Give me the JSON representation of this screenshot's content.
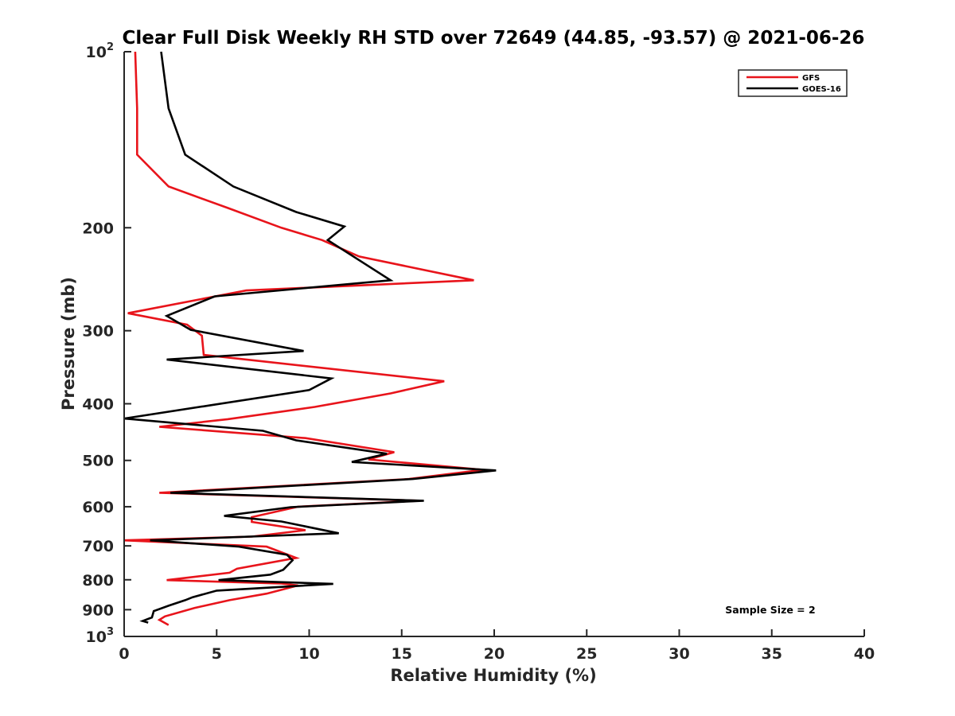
{
  "chart_data": {
    "type": "line",
    "title": "Clear Full Disk Weekly RH STD over 72649 (44.85, -93.57) @ 2021-06-26",
    "xlabel": "Relative Humidity (%)",
    "ylabel": "Pressure (mb)",
    "xlim": [
      0,
      40
    ],
    "ylim": [
      100,
      1000
    ],
    "y_scale": "log",
    "y_reversed": true,
    "grid": false,
    "x_ticks": [
      "0",
      "5",
      "10",
      "15",
      "20",
      "25",
      "30",
      "35",
      "40"
    ],
    "x_tick_values": [
      0,
      5,
      10,
      15,
      20,
      25,
      30,
      35,
      40
    ],
    "y_ticks": [
      {
        "value": 100,
        "base": "10",
        "exp": "2"
      },
      {
        "value": 200,
        "label": "200"
      },
      {
        "value": 300,
        "label": "300"
      },
      {
        "value": 400,
        "label": "400"
      },
      {
        "value": 500,
        "label": "500"
      },
      {
        "value": 600,
        "label": "600"
      },
      {
        "value": 700,
        "label": "700"
      },
      {
        "value": 800,
        "label": "800"
      },
      {
        "value": 900,
        "label": "900"
      },
      {
        "value": 1000,
        "base": "10",
        "exp": "3"
      }
    ],
    "legend": {
      "position": "top-right"
    },
    "annotation": "Sample Size = 2",
    "series": [
      {
        "name": "GFS",
        "color": "#e8141b",
        "points": [
          [
            0.6,
            100
          ],
          [
            0.7,
            125
          ],
          [
            0.7,
            150
          ],
          [
            2.4,
            170
          ],
          [
            5.6,
            185
          ],
          [
            8.5,
            200
          ],
          [
            10.7,
            210
          ],
          [
            12.7,
            224
          ],
          [
            18.9,
            246
          ],
          [
            6.6,
            256
          ],
          [
            0.2,
            280
          ],
          [
            3.4,
            293
          ],
          [
            4.2,
            306
          ],
          [
            4.3,
            330
          ],
          [
            17.3,
            366
          ],
          [
            14.4,
            384
          ],
          [
            10.3,
            405
          ],
          [
            5.6,
            425
          ],
          [
            1.9,
            438
          ],
          [
            9.8,
            458
          ],
          [
            14.6,
            484
          ],
          [
            13.2,
            498
          ],
          [
            19.4,
            519
          ],
          [
            15.4,
            538
          ],
          [
            1.9,
            568
          ],
          [
            16.0,
            586
          ],
          [
            9.4,
            600
          ],
          [
            6.9,
            625
          ],
          [
            6.9,
            637
          ],
          [
            9.8,
            658
          ],
          [
            6.9,
            675
          ],
          [
            0.0,
            685
          ],
          [
            7.7,
            702
          ],
          [
            9.3,
            734
          ],
          [
            6.1,
            766
          ],
          [
            5.7,
            778
          ],
          [
            2.3,
            801
          ],
          [
            8.5,
            812
          ],
          [
            9.4,
            818
          ],
          [
            7.7,
            845
          ],
          [
            5.7,
            867
          ],
          [
            3.8,
            894
          ],
          [
            2.2,
            924
          ],
          [
            1.9,
            937
          ],
          [
            2.4,
            956
          ]
        ]
      },
      {
        "name": "GOES-16",
        "color": "#000000",
        "points": [
          [
            2.0,
            100
          ],
          [
            2.4,
            125
          ],
          [
            3.3,
            150
          ],
          [
            5.9,
            170
          ],
          [
            9.3,
            188
          ],
          [
            11.9,
            199
          ],
          [
            11.0,
            210
          ],
          [
            14.4,
            246
          ],
          [
            4.9,
            262
          ],
          [
            2.3,
            283
          ],
          [
            3.6,
            299
          ],
          [
            9.7,
            325
          ],
          [
            2.3,
            336
          ],
          [
            11.2,
            362
          ],
          [
            10.0,
            379
          ],
          [
            0.0,
            424
          ],
          [
            7.5,
            445
          ],
          [
            9.3,
            462
          ],
          [
            14.2,
            487
          ],
          [
            12.3,
            503
          ],
          [
            20.1,
            520
          ],
          [
            15.6,
            538
          ],
          [
            2.5,
            568
          ],
          [
            16.2,
            586
          ],
          [
            9.0,
            601
          ],
          [
            5.4,
            622
          ],
          [
            8.5,
            636
          ],
          [
            11.6,
            666
          ],
          [
            1.4,
            685
          ],
          [
            6.2,
            702
          ],
          [
            8.8,
            725
          ],
          [
            9.1,
            741
          ],
          [
            8.6,
            769
          ],
          [
            7.9,
            784
          ],
          [
            5.1,
            801
          ],
          [
            11.3,
            813
          ],
          [
            5.0,
            835
          ],
          [
            3.7,
            857
          ],
          [
            3.3,
            867
          ],
          [
            2.4,
            886
          ],
          [
            1.6,
            905
          ],
          [
            1.5,
            928
          ],
          [
            1.0,
            941
          ],
          [
            1.3,
            947
          ]
        ]
      }
    ]
  }
}
